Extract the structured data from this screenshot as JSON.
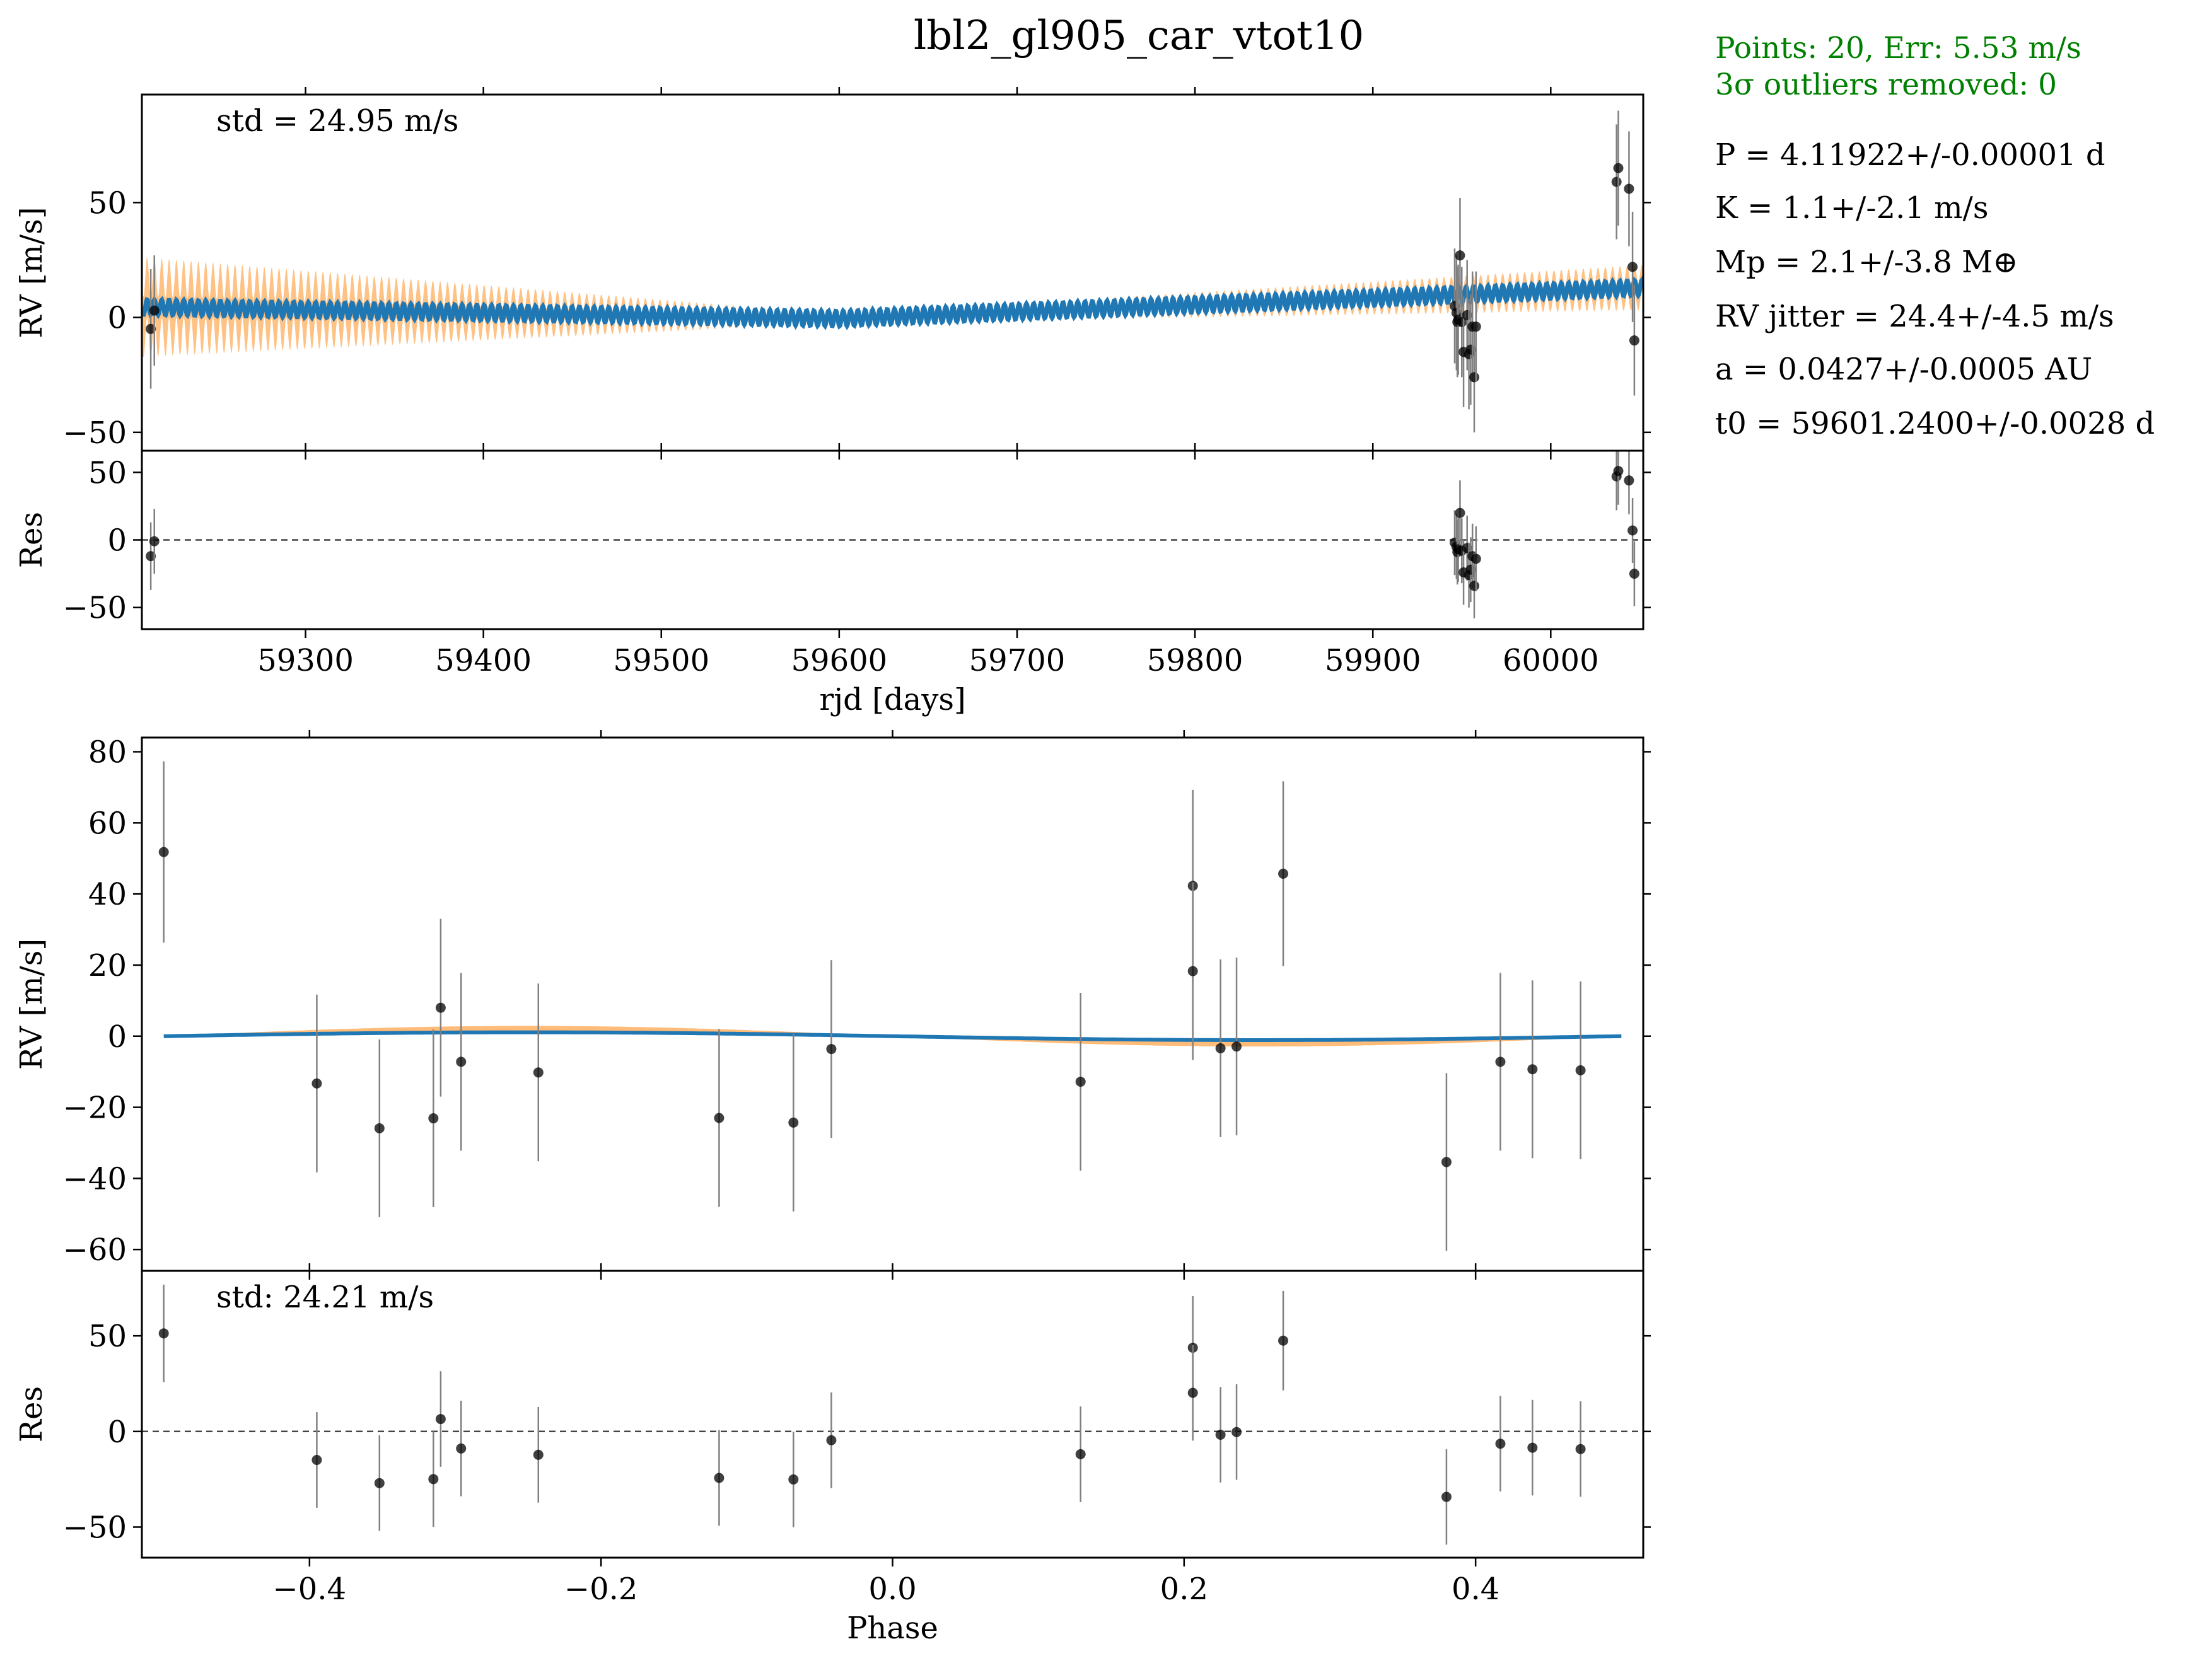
{
  "title": "lbl2_gl905_car_vtot10",
  "colors": {
    "model_line": "#1f77b4",
    "model_band": "#ffbb78",
    "points": "#000000",
    "errorbar": "#808080",
    "info_green": "#008000",
    "zero_line": "#444444"
  },
  "info": {
    "points_line": "Points: 20, Err: 5.53 m/s",
    "outliers_line": "3σ outliers removed: 0",
    "params": [
      "P = 4.11922+/-0.00001 d",
      "K = 1.1+/-2.1 m/s",
      "Mp = 2.1+/-3.8 M⊕",
      "RV jitter = 24.4+/-4.5 m/s",
      "a = 0.0427+/-0.0005 AU",
      "t0 = 59601.2400+/-0.0028 d"
    ]
  },
  "chart_data": [
    {
      "id": "time_rv",
      "type": "scatter",
      "xlabel": "",
      "ylabel": "RV [m/s]",
      "annotation": "std = 24.95 m/s",
      "xlim": [
        59208,
        60052
      ],
      "ylim": [
        -58,
        97
      ],
      "xticks": [
        59300,
        59400,
        59500,
        59600,
        59700,
        59800,
        59900,
        60000
      ],
      "yticks": [
        -50,
        0,
        50
      ],
      "model": {
        "period": 4.11922,
        "t0": 59601.24,
        "K": 1.1,
        "trend_at": [
          [
            59208,
            4.5
          ],
          [
            59600,
            -0.5
          ],
          [
            60052,
            13
          ]
        ],
        "band_halfwidth_at": [
          [
            59208,
            22
          ],
          [
            59600,
            2
          ],
          [
            60052,
            10
          ]
        ]
      },
      "points": [
        {
          "x": 59213,
          "y": -5,
          "err": 26
        },
        {
          "x": 59215,
          "y": 3,
          "err": 24
        },
        {
          "x": 59946,
          "y": 5,
          "err": 25
        },
        {
          "x": 59947,
          "y": 2,
          "err": 25
        },
        {
          "x": 59947.5,
          "y": -2,
          "err": 24
        },
        {
          "x": 59948,
          "y": -1,
          "err": 24
        },
        {
          "x": 59949,
          "y": 27,
          "err": 25
        },
        {
          "x": 59950,
          "y": -2,
          "err": 24
        },
        {
          "x": 59951,
          "y": -15,
          "err": 24
        },
        {
          "x": 59953,
          "y": 1,
          "err": 24
        },
        {
          "x": 59954,
          "y": -16,
          "err": 24
        },
        {
          "x": 59955,
          "y": -14,
          "err": 24
        },
        {
          "x": 59956,
          "y": -4,
          "err": 24
        },
        {
          "x": 59957,
          "y": -26,
          "err": 24
        },
        {
          "x": 59958,
          "y": -4,
          "err": 24
        },
        {
          "x": 60037,
          "y": 59,
          "err": 25
        },
        {
          "x": 60038,
          "y": 65,
          "err": 25
        },
        {
          "x": 60044,
          "y": 56,
          "err": 25
        },
        {
          "x": 60046,
          "y": 22,
          "err": 24
        },
        {
          "x": 60047,
          "y": -10,
          "err": 24
        }
      ]
    },
    {
      "id": "time_res",
      "type": "scatter",
      "xlabel": "rjd [days]",
      "ylabel": "Res",
      "xlim": [
        59208,
        60052
      ],
      "ylim": [
        -66,
        66
      ],
      "xticks": [
        59300,
        59400,
        59500,
        59600,
        59700,
        59800,
        59900,
        60000
      ],
      "yticks": [
        -50,
        0,
        50
      ],
      "zero_line": true,
      "points": [
        {
          "x": 59213,
          "y": -12,
          "err": 25
        },
        {
          "x": 59215,
          "y": -1,
          "err": 24
        },
        {
          "x": 59946,
          "y": -2,
          "err": 24
        },
        {
          "x": 59947,
          "y": -5,
          "err": 24
        },
        {
          "x": 59947.5,
          "y": -9,
          "err": 24
        },
        {
          "x": 59948,
          "y": -7,
          "err": 24
        },
        {
          "x": 59949,
          "y": 20,
          "err": 24
        },
        {
          "x": 59950,
          "y": -8,
          "err": 24
        },
        {
          "x": 59951,
          "y": -24,
          "err": 24
        },
        {
          "x": 59953,
          "y": -6,
          "err": 24
        },
        {
          "x": 59954,
          "y": -26,
          "err": 24
        },
        {
          "x": 59955,
          "y": -22,
          "err": 24
        },
        {
          "x": 59956,
          "y": -12,
          "err": 24
        },
        {
          "x": 59957,
          "y": -34,
          "err": 24
        },
        {
          "x": 59958,
          "y": -14,
          "err": 24
        },
        {
          "x": 60037,
          "y": 47,
          "err": 25
        },
        {
          "x": 60038,
          "y": 51,
          "err": 25
        },
        {
          "x": 60044,
          "y": 44,
          "err": 25
        },
        {
          "x": 60046,
          "y": 7,
          "err": 24
        },
        {
          "x": 60047,
          "y": -25,
          "err": 24
        }
      ]
    },
    {
      "id": "phase_rv",
      "type": "scatter",
      "xlabel": "",
      "ylabel": "RV [m/s]",
      "xlim": [
        -0.515,
        0.515
      ],
      "ylim": [
        -66,
        84
      ],
      "xticks": [
        -0.4,
        -0.2,
        0.0,
        0.2,
        0.4
      ],
      "yticks": [
        -60,
        -40,
        -20,
        0,
        20,
        40,
        60,
        80
      ],
      "model_curve": {
        "x_range": [
          -0.5,
          0.5
        ],
        "amplitude": 1.1,
        "phase_offset": 0.0,
        "band_amplitude": 2.9
      },
      "points": [
        {
          "x": -0.5,
          "y": 51.8,
          "err": 25.5
        },
        {
          "x": -0.395,
          "y": -13.3,
          "err": 25
        },
        {
          "x": -0.352,
          "y": -25.9,
          "err": 25
        },
        {
          "x": -0.315,
          "y": -23.1,
          "err": 25
        },
        {
          "x": -0.31,
          "y": 8,
          "err": 25
        },
        {
          "x": -0.296,
          "y": -7.2,
          "err": 25
        },
        {
          "x": -0.243,
          "y": -10.2,
          "err": 25
        },
        {
          "x": -0.119,
          "y": -23,
          "err": 25
        },
        {
          "x": -0.068,
          "y": -24.3,
          "err": 25
        },
        {
          "x": -0.042,
          "y": -3.6,
          "err": 25
        },
        {
          "x": 0.129,
          "y": -12.8,
          "err": 25
        },
        {
          "x": 0.206,
          "y": 42.3,
          "err": 27
        },
        {
          "x": 0.206,
          "y": 18.3,
          "err": 25
        },
        {
          "x": 0.225,
          "y": -3.4,
          "err": 25
        },
        {
          "x": 0.236,
          "y": -2.9,
          "err": 25
        },
        {
          "x": 0.268,
          "y": 45.7,
          "err": 26
        },
        {
          "x": 0.38,
          "y": -35.4,
          "err": 25
        },
        {
          "x": 0.417,
          "y": -7.2,
          "err": 25
        },
        {
          "x": 0.439,
          "y": -9.3,
          "err": 25
        },
        {
          "x": 0.472,
          "y": -9.6,
          "err": 25
        }
      ]
    },
    {
      "id": "phase_res",
      "type": "scatter",
      "xlabel": "Phase",
      "ylabel": "Res",
      "annotation": "std: 24.21 m/s",
      "xlim": [
        -0.515,
        0.515
      ],
      "ylim": [
        -66,
        84
      ],
      "xticks": [
        -0.4,
        -0.2,
        0.0,
        0.2,
        0.4
      ],
      "xticklabels": [
        "−0.4",
        "−0.2",
        "0.0",
        "0.2",
        "0.4"
      ],
      "yticks": [
        -50,
        0,
        50
      ],
      "zero_line": true,
      "points": [
        {
          "x": -0.5,
          "y": 51.3,
          "err": 25.5
        },
        {
          "x": -0.395,
          "y": -14.9,
          "err": 25
        },
        {
          "x": -0.352,
          "y": -27,
          "err": 25
        },
        {
          "x": -0.315,
          "y": -24.9,
          "err": 25
        },
        {
          "x": -0.31,
          "y": 6.5,
          "err": 25
        },
        {
          "x": -0.296,
          "y": -8.9,
          "err": 25
        },
        {
          "x": -0.243,
          "y": -12.2,
          "err": 25
        },
        {
          "x": -0.119,
          "y": -24.3,
          "err": 25
        },
        {
          "x": -0.068,
          "y": -25.1,
          "err": 25
        },
        {
          "x": -0.042,
          "y": -4.6,
          "err": 25
        },
        {
          "x": 0.129,
          "y": -11.9,
          "err": 25
        },
        {
          "x": 0.206,
          "y": 43.8,
          "err": 27
        },
        {
          "x": 0.206,
          "y": 20.2,
          "err": 25
        },
        {
          "x": 0.225,
          "y": -1.7,
          "err": 25
        },
        {
          "x": 0.236,
          "y": -0.3,
          "err": 25
        },
        {
          "x": 0.268,
          "y": 47.5,
          "err": 26
        },
        {
          "x": 0.38,
          "y": -34.2,
          "err": 25
        },
        {
          "x": 0.417,
          "y": -6.4,
          "err": 25
        },
        {
          "x": 0.439,
          "y": -8.5,
          "err": 25
        },
        {
          "x": 0.472,
          "y": -9.2,
          "err": 25
        }
      ]
    }
  ]
}
